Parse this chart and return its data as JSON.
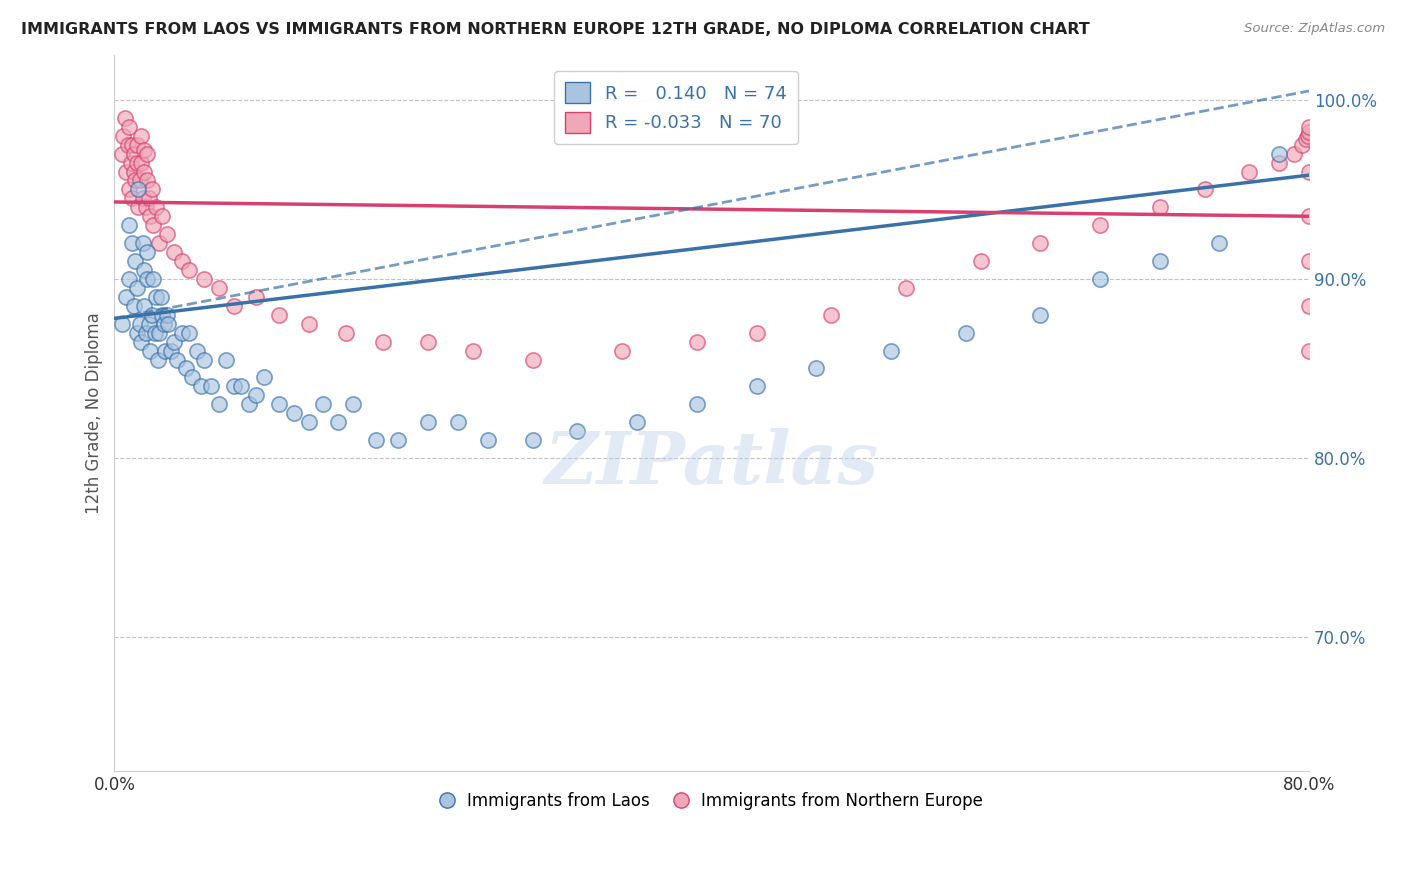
{
  "title": "IMMIGRANTS FROM LAOS VS IMMIGRANTS FROM NORTHERN EUROPE 12TH GRADE, NO DIPLOMA CORRELATION CHART",
  "source": "Source: ZipAtlas.com",
  "ylabel": "12th Grade, No Diploma",
  "legend_labels": [
    "Immigrants from Laos",
    "Immigrants from Northern Europe"
  ],
  "blue_R": "0.140",
  "blue_N": "74",
  "pink_R": "-0.033",
  "pink_N": "70",
  "blue_color": "#aac4e0",
  "pink_color": "#f0a8b8",
  "blue_line_color": "#3a72a8",
  "pink_line_color": "#d84070",
  "dot_size": 120,
  "xlim": [
    0.0,
    0.8
  ],
  "ylim": [
    0.625,
    1.025
  ],
  "yticks": [
    0.7,
    0.8,
    0.9,
    1.0
  ],
  "ytick_labels": [
    "70.0%",
    "80.0%",
    "90.0%",
    "100.0%"
  ],
  "blue_line_x0": 0.0,
  "blue_line_y0": 0.878,
  "blue_line_x1": 0.8,
  "blue_line_y1": 0.958,
  "pink_line_x0": 0.0,
  "pink_line_y0": 0.943,
  "pink_line_x1": 0.8,
  "pink_line_y1": 0.935,
  "dashed_line_x0": 0.0,
  "dashed_line_y0": 0.878,
  "dashed_line_x1": 0.8,
  "dashed_line_y1": 1.005,
  "blue_x": [
    0.005,
    0.008,
    0.01,
    0.01,
    0.012,
    0.013,
    0.014,
    0.015,
    0.015,
    0.016,
    0.017,
    0.018,
    0.019,
    0.02,
    0.02,
    0.021,
    0.022,
    0.022,
    0.023,
    0.024,
    0.025,
    0.026,
    0.027,
    0.028,
    0.029,
    0.03,
    0.031,
    0.032,
    0.033,
    0.034,
    0.035,
    0.036,
    0.038,
    0.04,
    0.042,
    0.045,
    0.048,
    0.05,
    0.052,
    0.055,
    0.058,
    0.06,
    0.065,
    0.07,
    0.075,
    0.08,
    0.085,
    0.09,
    0.095,
    0.1,
    0.11,
    0.12,
    0.13,
    0.14,
    0.15,
    0.16,
    0.175,
    0.19,
    0.21,
    0.23,
    0.25,
    0.28,
    0.31,
    0.35,
    0.39,
    0.43,
    0.47,
    0.52,
    0.57,
    0.62,
    0.66,
    0.7,
    0.74,
    0.78
  ],
  "blue_y": [
    0.875,
    0.89,
    0.9,
    0.93,
    0.92,
    0.885,
    0.91,
    0.895,
    0.87,
    0.95,
    0.875,
    0.865,
    0.92,
    0.885,
    0.905,
    0.87,
    0.9,
    0.915,
    0.875,
    0.86,
    0.88,
    0.9,
    0.87,
    0.89,
    0.855,
    0.87,
    0.89,
    0.88,
    0.875,
    0.86,
    0.88,
    0.875,
    0.86,
    0.865,
    0.855,
    0.87,
    0.85,
    0.87,
    0.845,
    0.86,
    0.84,
    0.855,
    0.84,
    0.83,
    0.855,
    0.84,
    0.84,
    0.83,
    0.835,
    0.845,
    0.83,
    0.825,
    0.82,
    0.83,
    0.82,
    0.83,
    0.81,
    0.81,
    0.82,
    0.82,
    0.81,
    0.81,
    0.815,
    0.82,
    0.83,
    0.84,
    0.85,
    0.86,
    0.87,
    0.88,
    0.9,
    0.91,
    0.92,
    0.97
  ],
  "pink_x": [
    0.005,
    0.006,
    0.007,
    0.008,
    0.009,
    0.01,
    0.01,
    0.011,
    0.012,
    0.012,
    0.013,
    0.013,
    0.014,
    0.015,
    0.015,
    0.016,
    0.017,
    0.018,
    0.018,
    0.019,
    0.02,
    0.02,
    0.021,
    0.022,
    0.022,
    0.023,
    0.024,
    0.025,
    0.026,
    0.028,
    0.03,
    0.032,
    0.035,
    0.04,
    0.045,
    0.05,
    0.06,
    0.07,
    0.08,
    0.095,
    0.11,
    0.13,
    0.155,
    0.18,
    0.21,
    0.24,
    0.28,
    0.34,
    0.39,
    0.43,
    0.48,
    0.53,
    0.58,
    0.62,
    0.66,
    0.7,
    0.73,
    0.76,
    0.78,
    0.79,
    0.795,
    0.798,
    0.799,
    0.8,
    0.8,
    0.8,
    0.8,
    0.8,
    0.8,
    0.8
  ],
  "pink_y": [
    0.97,
    0.98,
    0.99,
    0.96,
    0.975,
    0.985,
    0.95,
    0.965,
    0.975,
    0.945,
    0.96,
    0.97,
    0.955,
    0.965,
    0.975,
    0.94,
    0.955,
    0.965,
    0.98,
    0.945,
    0.96,
    0.972,
    0.94,
    0.955,
    0.97,
    0.945,
    0.935,
    0.95,
    0.93,
    0.94,
    0.92,
    0.935,
    0.925,
    0.915,
    0.91,
    0.905,
    0.9,
    0.895,
    0.885,
    0.89,
    0.88,
    0.875,
    0.87,
    0.865,
    0.865,
    0.86,
    0.855,
    0.86,
    0.865,
    0.87,
    0.88,
    0.895,
    0.91,
    0.92,
    0.93,
    0.94,
    0.95,
    0.96,
    0.965,
    0.97,
    0.975,
    0.978,
    0.98,
    0.982,
    0.985,
    0.96,
    0.935,
    0.91,
    0.885,
    0.86
  ]
}
